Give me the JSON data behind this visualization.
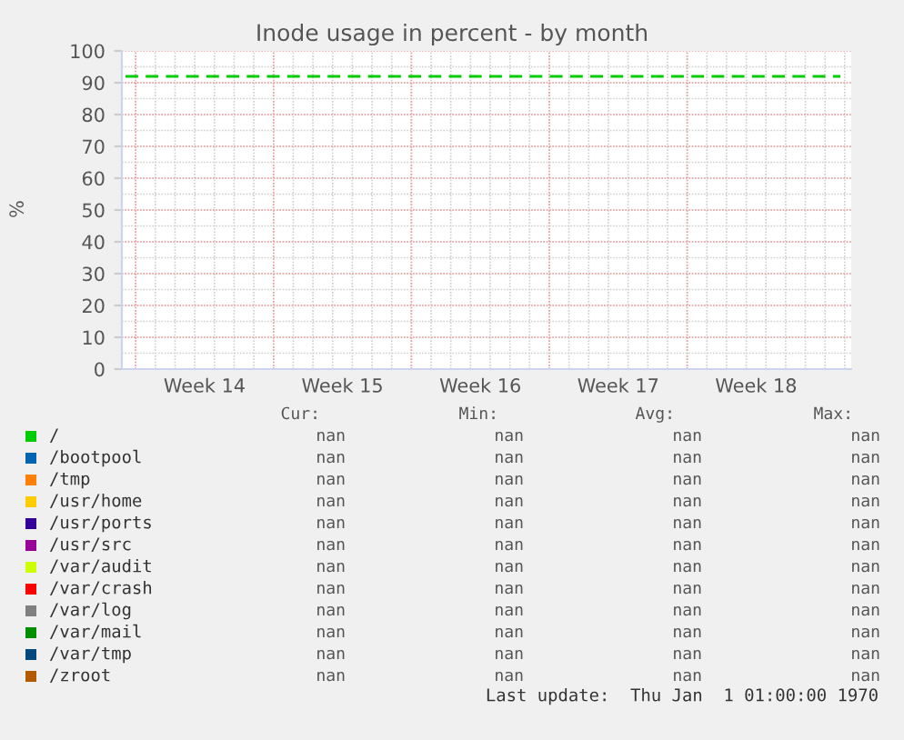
{
  "chart_data": {
    "type": "line",
    "title": "Inode usage in percent - by month",
    "ylabel": "%",
    "categories": [
      "Week 14",
      "Week 15",
      "Week 16",
      "Week 17",
      "Week 18"
    ],
    "ylim": [
      0,
      100
    ],
    "yticks": [
      0,
      10,
      20,
      30,
      40,
      50,
      60,
      70,
      80,
      90,
      100
    ],
    "grid": true,
    "legend": "bottom",
    "ref_lines": [
      {
        "axis": "y",
        "value": 92,
        "label": null,
        "color": "#00cc00",
        "line_style": "dashed"
      }
    ],
    "annotations": [
      "Cur:",
      "Min:",
      "Avg:",
      "Max:",
      "nan",
      "nan",
      "nan",
      "nan",
      "nan",
      "nan",
      "nan",
      "nan",
      "nan",
      "nan",
      "nan",
      "nan",
      "nan",
      "nan",
      "nan",
      "nan",
      "nan",
      "nan",
      "nan",
      "nan",
      "nan",
      "nan",
      "nan",
      "nan",
      "nan",
      "nan",
      "nan",
      "nan",
      "nan",
      "nan",
      "nan",
      "nan",
      "nan",
      "nan",
      "nan",
      "nan",
      "nan",
      "nan",
      "nan",
      "nan",
      "nan",
      "nan",
      "nan",
      "nan",
      "nan",
      "nan",
      "nan",
      "nan",
      "Last update:  Thu Jan  1 01:00:00 1970"
    ],
    "series": [
      {
        "name": "/",
        "color": "#00cc00",
        "values": [
          null,
          null,
          null,
          null,
          null
        ]
      },
      {
        "name": "/bootpool",
        "color": "#0066b3",
        "values": [
          null,
          null,
          null,
          null,
          null
        ]
      },
      {
        "name": "/tmp",
        "color": "#ff8000",
        "values": [
          null,
          null,
          null,
          null,
          null
        ]
      },
      {
        "name": "/usr/home",
        "color": "#ffcc00",
        "values": [
          null,
          null,
          null,
          null,
          null
        ]
      },
      {
        "name": "/usr/ports",
        "color": "#330099",
        "values": [
          null,
          null,
          null,
          null,
          null
        ]
      },
      {
        "name": "/usr/src",
        "color": "#990099",
        "values": [
          null,
          null,
          null,
          null,
          null
        ]
      },
      {
        "name": "/var/audit",
        "color": "#ccff00",
        "values": [
          null,
          null,
          null,
          null,
          null
        ]
      },
      {
        "name": "/var/crash",
        "color": "#ff0000",
        "values": [
          null,
          null,
          null,
          null,
          null
        ]
      },
      {
        "name": "/var/log",
        "color": "#808080",
        "values": [
          null,
          null,
          null,
          null,
          null
        ]
      },
      {
        "name": "/var/mail",
        "color": "#008f00",
        "values": [
          null,
          null,
          null,
          null,
          null
        ]
      },
      {
        "name": "/var/tmp",
        "color": "#00487d",
        "values": [
          null,
          null,
          null,
          null,
          null
        ]
      },
      {
        "name": "/zroot",
        "color": "#b35a00",
        "values": [
          null,
          null,
          null,
          null,
          null
        ]
      }
    ]
  }
}
